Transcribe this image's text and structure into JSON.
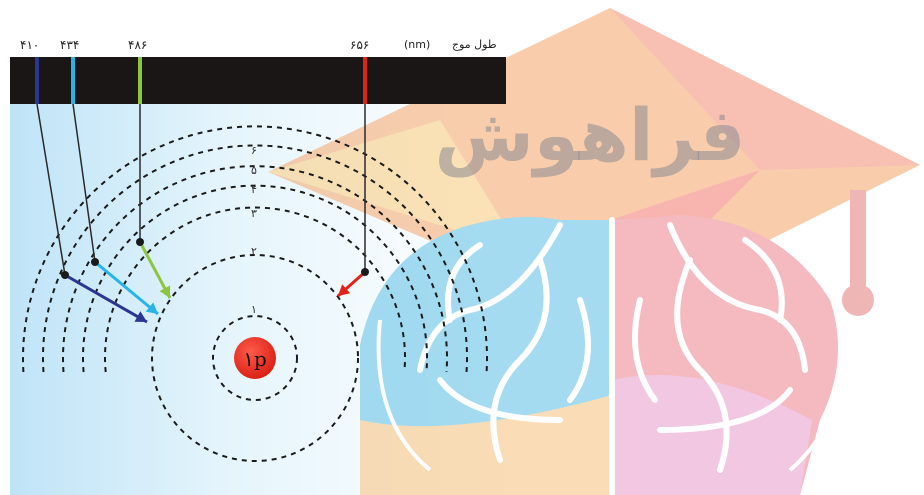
{
  "spectrum": {
    "axis_label": "طول موج",
    "unit": "(nm)",
    "lines": [
      {
        "wavelength": "۴۱۰",
        "color": "#2b3690"
      },
      {
        "wavelength": "۴۳۴",
        "color": "#28b4e6"
      },
      {
        "wavelength": "۴۸۶",
        "color": "#8cc63f"
      },
      {
        "wavelength": "۶۵۶",
        "color": "#e2231a"
      }
    ]
  },
  "atom": {
    "nucleus_label": "۱p",
    "shells": [
      "۱",
      "۲",
      "۳",
      "۴",
      "۵",
      "۶"
    ]
  },
  "watermark": {
    "text": "فراهوش"
  }
}
